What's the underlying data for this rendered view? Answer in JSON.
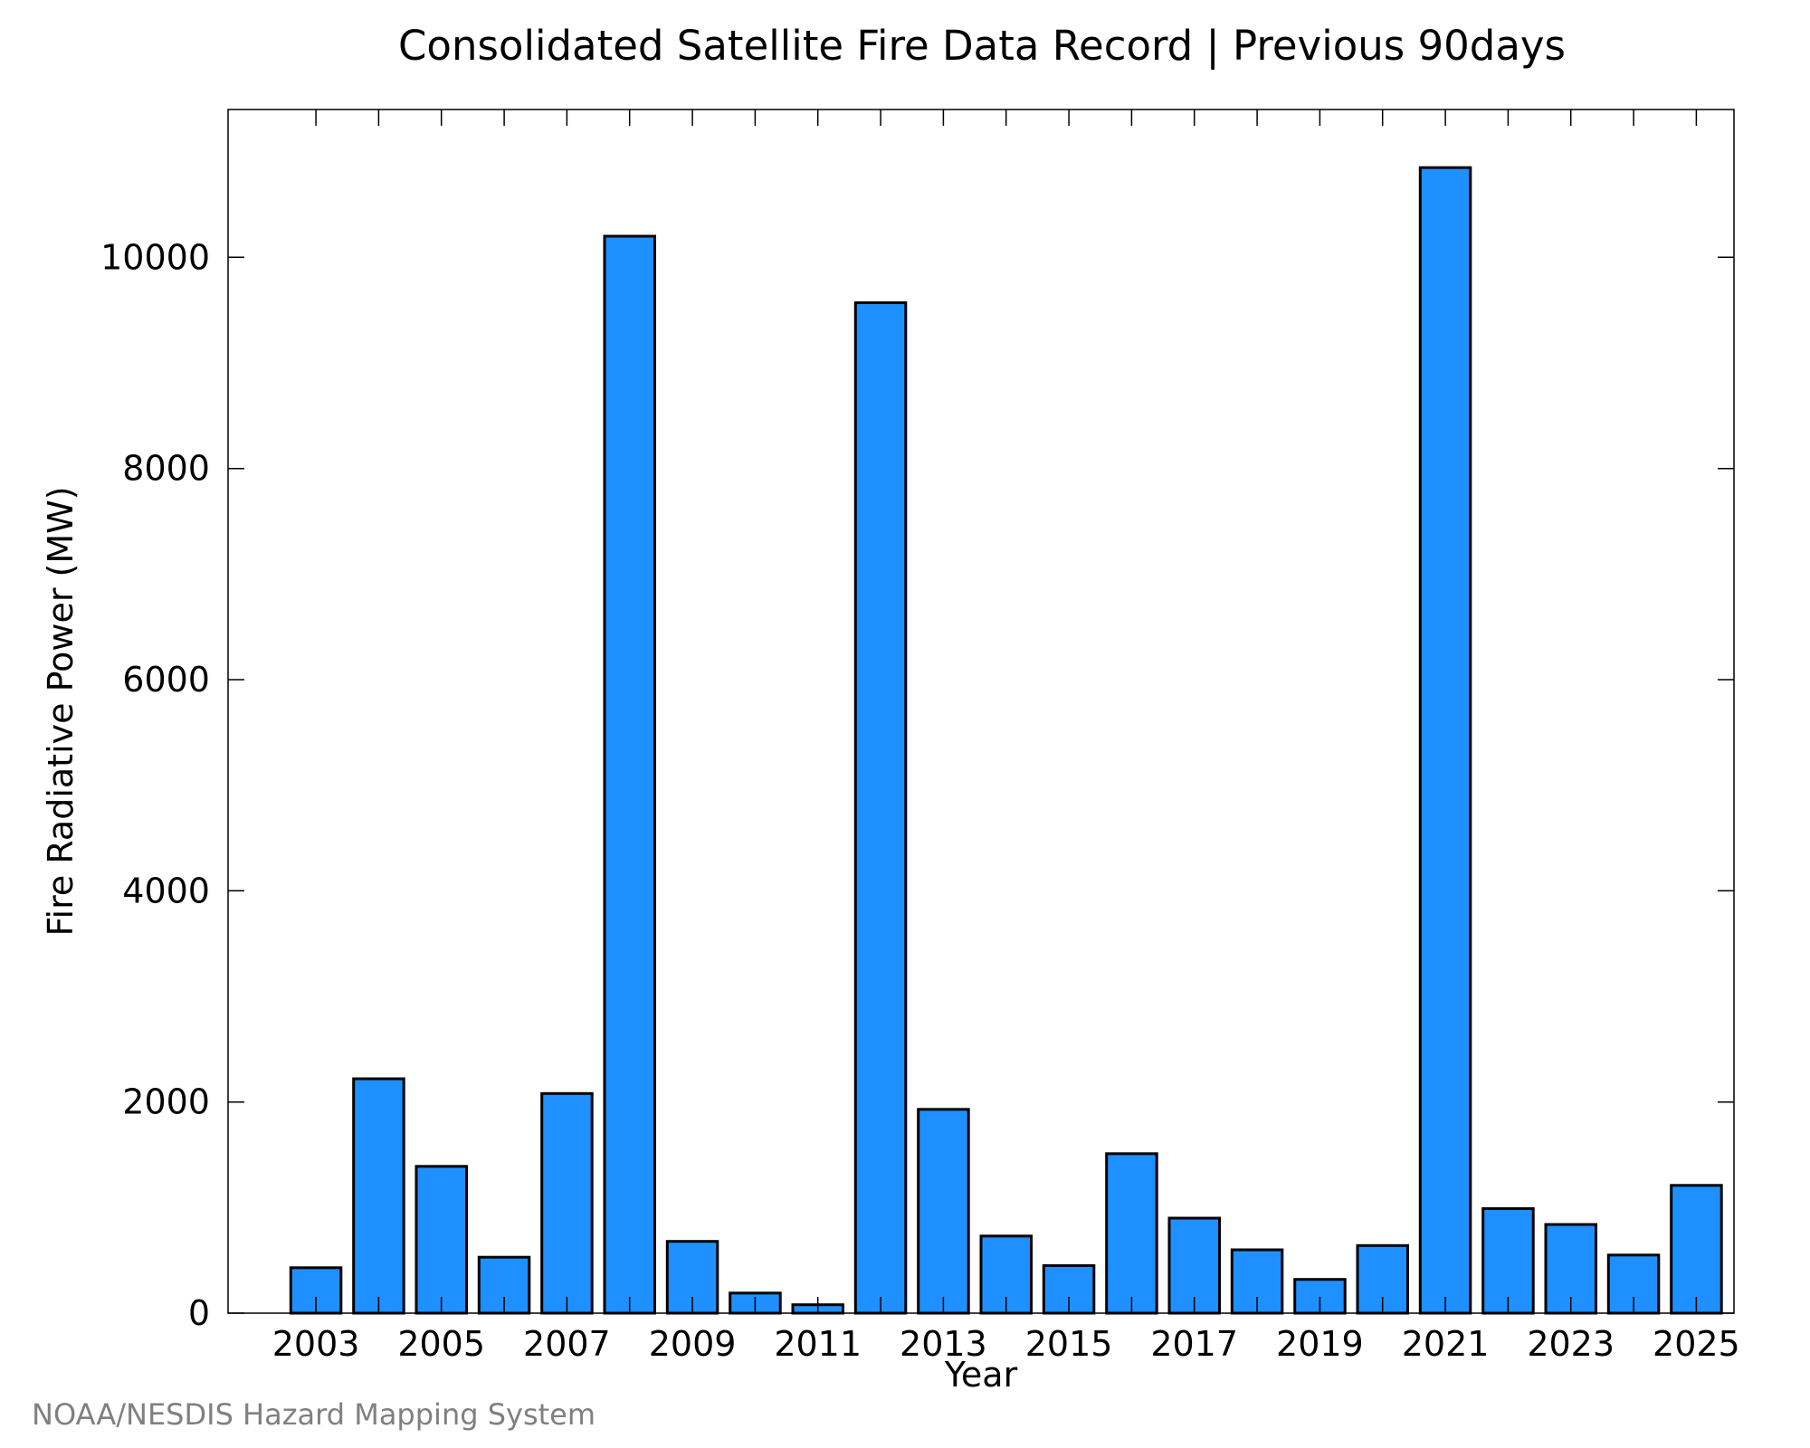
{
  "chart_data": {
    "type": "bar",
    "title": "Consolidated Satellite Fire Data Record | Previous 90days",
    "xlabel": "Year",
    "ylabel": "Fire Radiative Power (MW)",
    "categories": [
      2003,
      2004,
      2005,
      2006,
      2007,
      2008,
      2009,
      2010,
      2011,
      2012,
      2013,
      2014,
      2015,
      2016,
      2017,
      2018,
      2019,
      2020,
      2021,
      2022,
      2023,
      2024,
      2025
    ],
    "values": [
      430,
      2220,
      1390,
      530,
      2080,
      10200,
      680,
      190,
      80,
      9570,
      1930,
      730,
      450,
      1510,
      900,
      600,
      320,
      640,
      10850,
      990,
      840,
      550,
      1210
    ],
    "x_tick_labels": [
      "2003",
      "2005",
      "2007",
      "2009",
      "2011",
      "2013",
      "2015",
      "2017",
      "2019",
      "2021",
      "2023",
      "2025"
    ],
    "x_tick_years": [
      2003,
      2005,
      2007,
      2009,
      2011,
      2013,
      2015,
      2017,
      2019,
      2021,
      2023,
      2025
    ],
    "y_ticks": [
      0,
      2000,
      4000,
      6000,
      8000,
      10000
    ],
    "y_tick_labels": [
      "0",
      "2000",
      "4000",
      "6000",
      "8000",
      "10000"
    ],
    "xlim": [
      2001.6,
      2025.6
    ],
    "ylim": [
      0,
      11400
    ],
    "grid": false,
    "bar_color": "#1e90ff",
    "bar_edge_color": "#000000"
  },
  "credit": "NOAA/NESDIS Hazard Mapping System"
}
